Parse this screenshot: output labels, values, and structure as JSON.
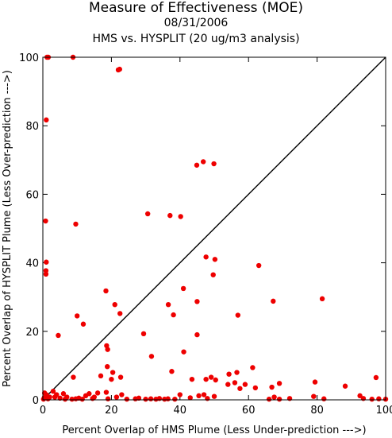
{
  "chart_data": {
    "type": "scatter",
    "title": "Measure of Effectiveness (MOE)",
    "date": "08/31/2006",
    "subtitle": "HMS vs. HYSPLIT  (20 ug/m3 analysis)",
    "xlabel": "Percent Overlap of HMS Plume (Less Under-prediction --->)",
    "ylabel": "Percent Overlap of HYSPLIT Plume (Less Over-prediction --->)",
    "xlim": [
      0,
      100
    ],
    "ylim": [
      0,
      100
    ],
    "xticks": [
      0,
      20,
      40,
      60,
      80,
      100
    ],
    "yticks": [
      0,
      20,
      40,
      60,
      80,
      100
    ],
    "grid": false,
    "reference_line": "y = x",
    "point_color": "#ee0000",
    "points": [
      [
        1.2,
        100
      ],
      [
        1.6,
        100
      ],
      [
        8.8,
        100
      ],
      [
        22,
        96.3
      ],
      [
        22.4,
        96.5
      ],
      [
        1,
        81.7
      ],
      [
        0.8,
        52.2
      ],
      [
        9.6,
        51.3
      ],
      [
        1,
        40.2
      ],
      [
        0.9,
        37.7
      ],
      [
        0.9,
        36.7
      ],
      [
        30.6,
        54.3
      ],
      [
        37.1,
        53.8
      ],
      [
        40.2,
        53.5
      ],
      [
        44.9,
        68.5
      ],
      [
        46.8,
        69.5
      ],
      [
        49.9,
        68.9
      ],
      [
        47.6,
        41.7
      ],
      [
        50.2,
        41
      ],
      [
        49.7,
        36.5
      ],
      [
        63,
        39.2
      ],
      [
        41,
        32.5
      ],
      [
        67.2,
        28.8
      ],
      [
        81.5,
        29.5
      ],
      [
        18.4,
        31.8
      ],
      [
        21,
        27.8
      ],
      [
        22.5,
        25.2
      ],
      [
        10,
        24.5
      ],
      [
        11.8,
        22.1
      ],
      [
        4.5,
        18.8
      ],
      [
        36.6,
        27.8
      ],
      [
        38.1,
        24.8
      ],
      [
        45,
        28.7
      ],
      [
        56.9,
        24.7
      ],
      [
        29.4,
        19.3
      ],
      [
        45,
        19
      ],
      [
        31.7,
        12.7
      ],
      [
        41.1,
        14
      ],
      [
        18.6,
        15.8
      ],
      [
        18.9,
        14.7
      ],
      [
        18.8,
        9.7
      ],
      [
        20.4,
        8
      ],
      [
        22.7,
        6.6
      ],
      [
        16.9,
        7
      ],
      [
        8.9,
        6.6
      ],
      [
        20,
        6
      ],
      [
        37.6,
        8.3
      ],
      [
        47.6,
        6
      ],
      [
        49.1,
        6.6
      ],
      [
        50.4,
        5.8
      ],
      [
        43.5,
        6
      ],
      [
        54.3,
        7.5
      ],
      [
        56.6,
        8
      ],
      [
        61.2,
        9.4
      ],
      [
        66.8,
        3.7
      ],
      [
        69,
        4.8
      ],
      [
        79.4,
        5.2
      ],
      [
        88.2,
        4
      ],
      [
        97.2,
        6.5
      ],
      [
        0.5,
        2
      ],
      [
        1,
        1.5
      ],
      [
        2,
        0.8
      ],
      [
        3,
        2.5
      ],
      [
        4,
        1.5
      ],
      [
        5,
        0.5
      ],
      [
        6,
        1.8
      ],
      [
        7,
        0.8
      ],
      [
        8.5,
        0.2
      ],
      [
        9.6,
        0.3
      ],
      [
        10.5,
        0.5
      ],
      [
        11.5,
        0.2
      ],
      [
        12.5,
        1.2
      ],
      [
        13.5,
        1.8
      ],
      [
        14.5,
        0.4
      ],
      [
        16,
        2
      ],
      [
        18.5,
        2.2
      ],
      [
        19,
        0.3
      ],
      [
        21.5,
        0.8
      ],
      [
        23,
        1.5
      ],
      [
        24.5,
        0.2
      ],
      [
        27,
        0.3
      ],
      [
        30,
        0.2
      ],
      [
        31.5,
        0.3
      ],
      [
        33,
        0.2
      ],
      [
        34,
        0.4
      ],
      [
        35.5,
        0.2
      ],
      [
        36.5,
        0.3
      ],
      [
        38.5,
        0.2
      ],
      [
        40,
        1.5
      ],
      [
        43,
        0.6
      ],
      [
        45.5,
        1.2
      ],
      [
        47,
        1.5
      ],
      [
        48,
        0.4
      ],
      [
        50,
        1
      ],
      [
        54,
        4.5
      ],
      [
        56,
        5
      ],
      [
        57.5,
        3.3
      ],
      [
        59,
        4.5
      ],
      [
        62,
        3.5
      ],
      [
        66,
        0.2
      ],
      [
        67.5,
        0.8
      ],
      [
        69,
        0.2
      ],
      [
        72,
        0.4
      ],
      [
        79,
        1
      ],
      [
        82,
        0.3
      ],
      [
        92.5,
        1.2
      ],
      [
        93.5,
        0.4
      ],
      [
        96,
        0.2
      ],
      [
        98,
        0.3
      ],
      [
        100,
        0.2
      ],
      [
        0.2,
        0.2
      ],
      [
        0.4,
        0.6
      ],
      [
        1.5,
        0.3
      ],
      [
        3.5,
        0.8
      ],
      [
        6.5,
        0.2
      ],
      [
        15,
        0.8
      ],
      [
        28,
        0.5
      ]
    ]
  }
}
